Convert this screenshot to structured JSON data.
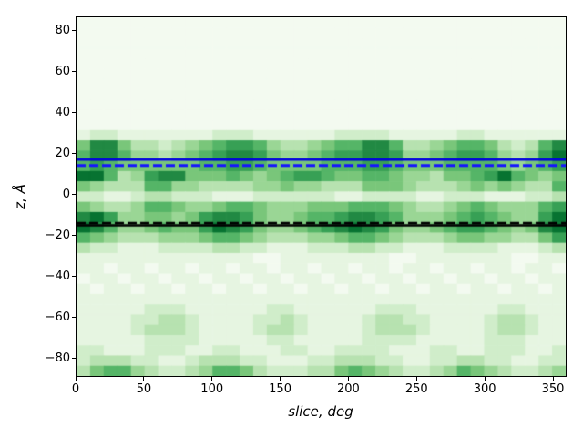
{
  "figure": {
    "background": "#ffffff",
    "frame_color": "#000000"
  },
  "chart_data": {
    "type": "heatmap",
    "title": "",
    "xlabel": "slice, deg",
    "ylabel": "z, Å",
    "xlim": [
      0,
      360
    ],
    "ylim": [
      -89,
      87
    ],
    "grid_lines": "off",
    "legend": "none",
    "xticks": [
      {
        "label": "0",
        "value": 0
      },
      {
        "label": "50",
        "value": 50
      },
      {
        "label": "100",
        "value": 100
      },
      {
        "label": "150",
        "value": 150
      },
      {
        "label": "200",
        "value": 200
      },
      {
        "label": "250",
        "value": 250
      },
      {
        "label": "300",
        "value": 300
      },
      {
        "label": "350",
        "value": 350
      }
    ],
    "yticks": [
      {
        "label": "80",
        "value": 80
      },
      {
        "label": "60",
        "value": 60
      },
      {
        "label": "40",
        "value": 40
      },
      {
        "label": "20",
        "value": 20
      },
      {
        "label": "0",
        "value": 0
      },
      {
        "label": "−20",
        "value": -20
      },
      {
        "label": "−40",
        "value": -40
      },
      {
        "label": "−60",
        "value": -60
      },
      {
        "label": "−80",
        "value": -80
      }
    ],
    "colormap": {
      "name": "Greens",
      "stops": [
        "#f7fcf5",
        "#e5f5e0",
        "#c7e9c0",
        "#a1d99b",
        "#74c476",
        "#41ab5d",
        "#238b45",
        "#006d2c",
        "#00441b"
      ],
      "digit_to_fraction": {
        "min": 0.03,
        "max": 0.85
      }
    },
    "heatmap": {
      "cols": 36,
      "rows": 35,
      "x_bin_deg": 10,
      "z_bin_angstrom": 5,
      "x_range": [
        0,
        360
      ],
      "z_range_top_to_bottom": [
        87.5,
        -87.5
      ],
      "intensity_scale": "one digit per cell, 0 = palest green, 9 = darkest green; rows listed top (z=+85) to bottom (z=-85)",
      "values": [
        "000000000000000000000000000000000000",
        "000000000000000000000000000000000000",
        "000000000000000000000000000000000000",
        "000000000000000000000000000000000000",
        "000000000000000000000000000000000000",
        "000000000000000000000000000000000000",
        "000000000000000000000000000000000000",
        "000000000000000000000000000000000000",
        "000000000000000000000000000000000000",
        "000000000000000000000000000000000000",
        "000000000000000000000000000000000000",
        "122111111122211111122221111122111111",
        "588533234567764334566886334566532368",
        "688644345678875445677887445677643479",
        "676555555667765555666776555666654567",
        "996347885556545677655665443556796545",
        "543336644333344544333555433345454336",
        "221123322211122222211222211222111223",
        "543346654456654445556665433456544467",
        "897445545788754456678876444567654479",
        "986445655798754456789875445677654589",
        "654333444566543334456654333455443357",
        "322111222233221112223322111222211123",
        "111111111111100111111110011111110011",
        "110110110110110110110110110110110110",
        "011011011011011011011011011011011011",
        "101101101101101101101101101101101101",
        "111111111111111111111111111111111111",
        "111112221111112211111122211111122111",
        "111122332111122321111233221111233211",
        "111123332111123321111233321111233211",
        "111112222111112211111222211111222111",
        "221112221122111221122221112211222112",
        "233322112333221112233322112233221122",
        "356643223466532223356543223465432234"
      ]
    },
    "hlines": [
      {
        "name": "blue-solid-line",
        "z": 17.2,
        "color": "#0000dd",
        "style": "solid",
        "width": 2.5
      },
      {
        "name": "blue-dashed-line",
        "z": 14.3,
        "color": "#1414ff",
        "style": "dashed",
        "width": 3,
        "dash": [
          10,
          4
        ]
      },
      {
        "name": "black-dashed-line",
        "z": -13.9,
        "color": "#000000",
        "style": "dashed",
        "width": 2.5,
        "dash": [
          10,
          4
        ]
      },
      {
        "name": "black-solid-line",
        "z": -15.1,
        "color": "#000000",
        "style": "solid",
        "width": 2.5
      }
    ]
  }
}
